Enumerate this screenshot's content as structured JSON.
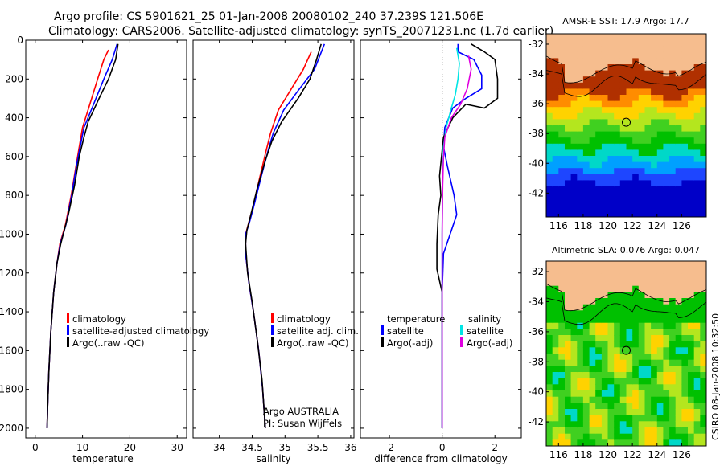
{
  "figure": {
    "title_line1": "Argo profile: CS 5901621_25 01-Jan-2008 20080102_240 37.239S 121.506E",
    "title_line2": "Climatology: CARS2006. Satellite-adjusted climatology: synTS_20071231.nc (1.7d earlier)",
    "credit": "CSIRO 08-Jan-2008 10:32:50",
    "argo_note_line1": "Argo AUSTRALIA",
    "argo_note_line2": "PI: Susan Wijffels"
  },
  "colors": {
    "climatology": "#ff0000",
    "satellite": "#0000ff",
    "argo": "#000000",
    "salinity_satellite": "#00e5e5",
    "salinity_argo": "#e000e0",
    "land": "#f6bd8e"
  },
  "chart_data": [
    {
      "id": "temperature",
      "type": "line",
      "xlabel": "temperature",
      "ylabel": "",
      "xlim": [
        -2,
        32
      ],
      "ylim": [
        2050,
        0
      ],
      "xticks": [
        0,
        10,
        20,
        30
      ],
      "yticks": [
        0,
        200,
        400,
        600,
        800,
        1000,
        1200,
        1400,
        1600,
        1800,
        2000
      ],
      "legend": [
        "climatology",
        "satellite-adjusted climatology",
        "Argo(..raw -QC)"
      ],
      "series": [
        {
          "name": "climatology",
          "color": "#ff0000",
          "points": [
            [
              15.5,
              50
            ],
            [
              14.5,
              100
            ],
            [
              13.2,
              200
            ],
            [
              11.3,
              350
            ],
            [
              10,
              450
            ],
            [
              9.3,
              550
            ],
            [
              8.6,
              650
            ],
            [
              7.6,
              800
            ],
            [
              6.4,
              950
            ],
            [
              5.2,
              1050
            ],
            [
              4.6,
              1150
            ],
            [
              3.9,
              1300
            ],
            [
              3.3,
              1500
            ],
            [
              2.9,
              1700
            ],
            [
              2.6,
              1900
            ],
            [
              2.5,
              2000
            ]
          ]
        },
        {
          "name": "satellite-adjusted climatology",
          "color": "#0000ff",
          "points": [
            [
              17.3,
              20
            ],
            [
              16.3,
              100
            ],
            [
              14.5,
              200
            ],
            [
              12,
              350
            ],
            [
              10.3,
              450
            ],
            [
              9.5,
              550
            ],
            [
              8.7,
              650
            ],
            [
              7.7,
              800
            ],
            [
              6.5,
              950
            ],
            [
              5.3,
              1050
            ],
            [
              4.6,
              1150
            ],
            [
              3.9,
              1300
            ],
            [
              3.3,
              1500
            ],
            [
              2.9,
              1700
            ],
            [
              2.6,
              1900
            ],
            [
              2.5,
              2000
            ]
          ]
        },
        {
          "name": "Argo(..raw -QC)",
          "color": "#000000",
          "points": [
            [
              17.5,
              20
            ],
            [
              17,
              100
            ],
            [
              15.5,
              200
            ],
            [
              13.5,
              300
            ],
            [
              11.2,
              420
            ],
            [
              10.3,
              500
            ],
            [
              9.3,
              600
            ],
            [
              8.3,
              750
            ],
            [
              7,
              900
            ],
            [
              5.4,
              1050
            ],
            [
              4.6,
              1150
            ],
            [
              3.9,
              1300
            ],
            [
              3.3,
              1500
            ],
            [
              2.9,
              1700
            ],
            [
              2.6,
              1900
            ],
            [
              2.5,
              2000
            ]
          ]
        }
      ]
    },
    {
      "id": "salinity",
      "type": "line",
      "xlabel": "salinity",
      "ylabel": "",
      "xlim": [
        33.6,
        36.05
      ],
      "ylim": [
        2050,
        0
      ],
      "xticks": [
        34,
        34.5,
        35,
        35.5,
        36
      ],
      "legend": [
        "climatology",
        "satellite adj. clim.",
        "Argo(..raw -QC)"
      ],
      "series": [
        {
          "name": "climatology",
          "color": "#ff0000",
          "points": [
            [
              35.4,
              60
            ],
            [
              35.28,
              150
            ],
            [
              35.08,
              260
            ],
            [
              34.9,
              360
            ],
            [
              34.78,
              480
            ],
            [
              34.72,
              560
            ],
            [
              34.62,
              700
            ],
            [
              34.52,
              850
            ],
            [
              34.44,
              950
            ],
            [
              34.4,
              1000
            ],
            [
              34.4,
              1100
            ],
            [
              34.45,
              1250
            ],
            [
              34.52,
              1400
            ],
            [
              34.6,
              1600
            ],
            [
              34.66,
              1800
            ],
            [
              34.7,
              2000
            ]
          ]
        },
        {
          "name": "satellite adj. clim.",
          "color": "#0000ff",
          "points": [
            [
              35.6,
              20
            ],
            [
              35.45,
              150
            ],
            [
              35.2,
              260
            ],
            [
              34.98,
              360
            ],
            [
              34.82,
              480
            ],
            [
              34.75,
              560
            ],
            [
              34.64,
              700
            ],
            [
              34.53,
              850
            ],
            [
              34.45,
              950
            ],
            [
              34.4,
              1000
            ],
            [
              34.4,
              1100
            ],
            [
              34.45,
              1250
            ],
            [
              34.52,
              1400
            ],
            [
              34.6,
              1600
            ],
            [
              34.66,
              1800
            ],
            [
              34.7,
              2000
            ]
          ]
        },
        {
          "name": "Argo(..raw -QC)",
          "color": "#000000",
          "points": [
            [
              35.55,
              20
            ],
            [
              35.48,
              100
            ],
            [
              35.38,
              200
            ],
            [
              35.2,
              300
            ],
            [
              34.95,
              420
            ],
            [
              34.8,
              520
            ],
            [
              34.7,
              620
            ],
            [
              34.58,
              760
            ],
            [
              34.48,
              900
            ],
            [
              34.42,
              980
            ],
            [
              34.4,
              1050
            ],
            [
              34.43,
              1200
            ],
            [
              34.5,
              1350
            ],
            [
              34.58,
              1550
            ],
            [
              34.65,
              1750
            ],
            [
              34.69,
              1950
            ],
            [
              34.7,
              2000
            ]
          ]
        }
      ]
    },
    {
      "id": "difference",
      "type": "line",
      "xlabel": "difference from climatology",
      "ylabel": "",
      "xlim": [
        -3.1,
        3
      ],
      "ylim": [
        2050,
        0
      ],
      "xticks": [
        -2,
        0,
        2
      ],
      "legend_titles": [
        "temperature",
        "salinity"
      ],
      "legend": [
        "satellite",
        "Argo(-adj)",
        "satellite",
        "Argo(-adj)"
      ],
      "series": [
        {
          "name": "satellite",
          "group": "temperature",
          "color": "#0000ff",
          "points": [
            [
              0.6,
              20
            ],
            [
              0.6,
              60
            ],
            [
              1.2,
              100
            ],
            [
              1.5,
              180
            ],
            [
              1.5,
              250
            ],
            [
              0.9,
              300
            ],
            [
              0.4,
              350
            ],
            [
              0.1,
              450
            ],
            [
              0.05,
              550
            ],
            [
              0.2,
              650
            ],
            [
              0.45,
              800
            ],
            [
              0.55,
              900
            ],
            [
              0.3,
              1000
            ],
            [
              0.05,
              1100
            ],
            [
              0.0,
              1300
            ],
            [
              0.0,
              2000
            ]
          ]
        },
        {
          "name": "Argo(-adj)",
          "group": "temperature",
          "color": "#000000",
          "points": [
            [
              1.1,
              20
            ],
            [
              1.6,
              60
            ],
            [
              2.0,
              100
            ],
            [
              2.1,
              200
            ],
            [
              2.1,
              300
            ],
            [
              1.6,
              350
            ],
            [
              0.9,
              330
            ],
            [
              0.4,
              400
            ],
            [
              0.05,
              500
            ],
            [
              -0.1,
              700
            ],
            [
              -0.05,
              800
            ],
            [
              -0.15,
              900
            ],
            [
              -0.2,
              1050
            ],
            [
              -0.2,
              1180
            ],
            [
              0.0,
              1300
            ],
            [
              0.0,
              2000
            ]
          ]
        },
        {
          "name": "satellite",
          "group": "salinity",
          "color": "#00e5e5",
          "points": [
            [
              0.55,
              40
            ],
            [
              0.65,
              120
            ],
            [
              0.6,
              200
            ],
            [
              0.5,
              280
            ],
            [
              0.35,
              350
            ],
            [
              0.15,
              450
            ],
            [
              0.05,
              550
            ],
            [
              0.02,
              700
            ],
            [
              0.0,
              1000
            ],
            [
              0.0,
              2000
            ]
          ]
        },
        {
          "name": "Argo(-adj)",
          "group": "salinity",
          "color": "#e000e0",
          "points": [
            [
              1.0,
              80
            ],
            [
              1.1,
              150
            ],
            [
              0.95,
              250
            ],
            [
              0.7,
              330
            ],
            [
              0.35,
              400
            ],
            [
              0.1,
              500
            ],
            [
              0.05,
              600
            ],
            [
              0.02,
              750
            ],
            [
              0.0,
              1000
            ],
            [
              0.0,
              2000
            ]
          ]
        }
      ]
    },
    {
      "id": "sst-map",
      "type": "heatmap",
      "title": "AMSR-E SST: 17.9 Argo: 17.7",
      "xlim": [
        115,
        128
      ],
      "ylim": [
        -43.6,
        -31.3
      ],
      "xticks": [
        116,
        118,
        120,
        122,
        124,
        126
      ],
      "yticks": [
        -32,
        -34,
        -36,
        -38,
        -40,
        -42
      ],
      "marker": {
        "lon": 121.5,
        "lat": -37.24
      }
    },
    {
      "id": "sla-map",
      "type": "heatmap",
      "title": "Altimetric SLA: 0.076 Argo: 0.047",
      "xlim": [
        115,
        128
      ],
      "ylim": [
        -43.6,
        -31.3
      ],
      "xticks": [
        116,
        118,
        120,
        122,
        124,
        126
      ],
      "yticks": [
        -32,
        -34,
        -36,
        -38,
        -40,
        -42
      ],
      "marker": {
        "lon": 121.5,
        "lat": -37.24
      }
    }
  ]
}
